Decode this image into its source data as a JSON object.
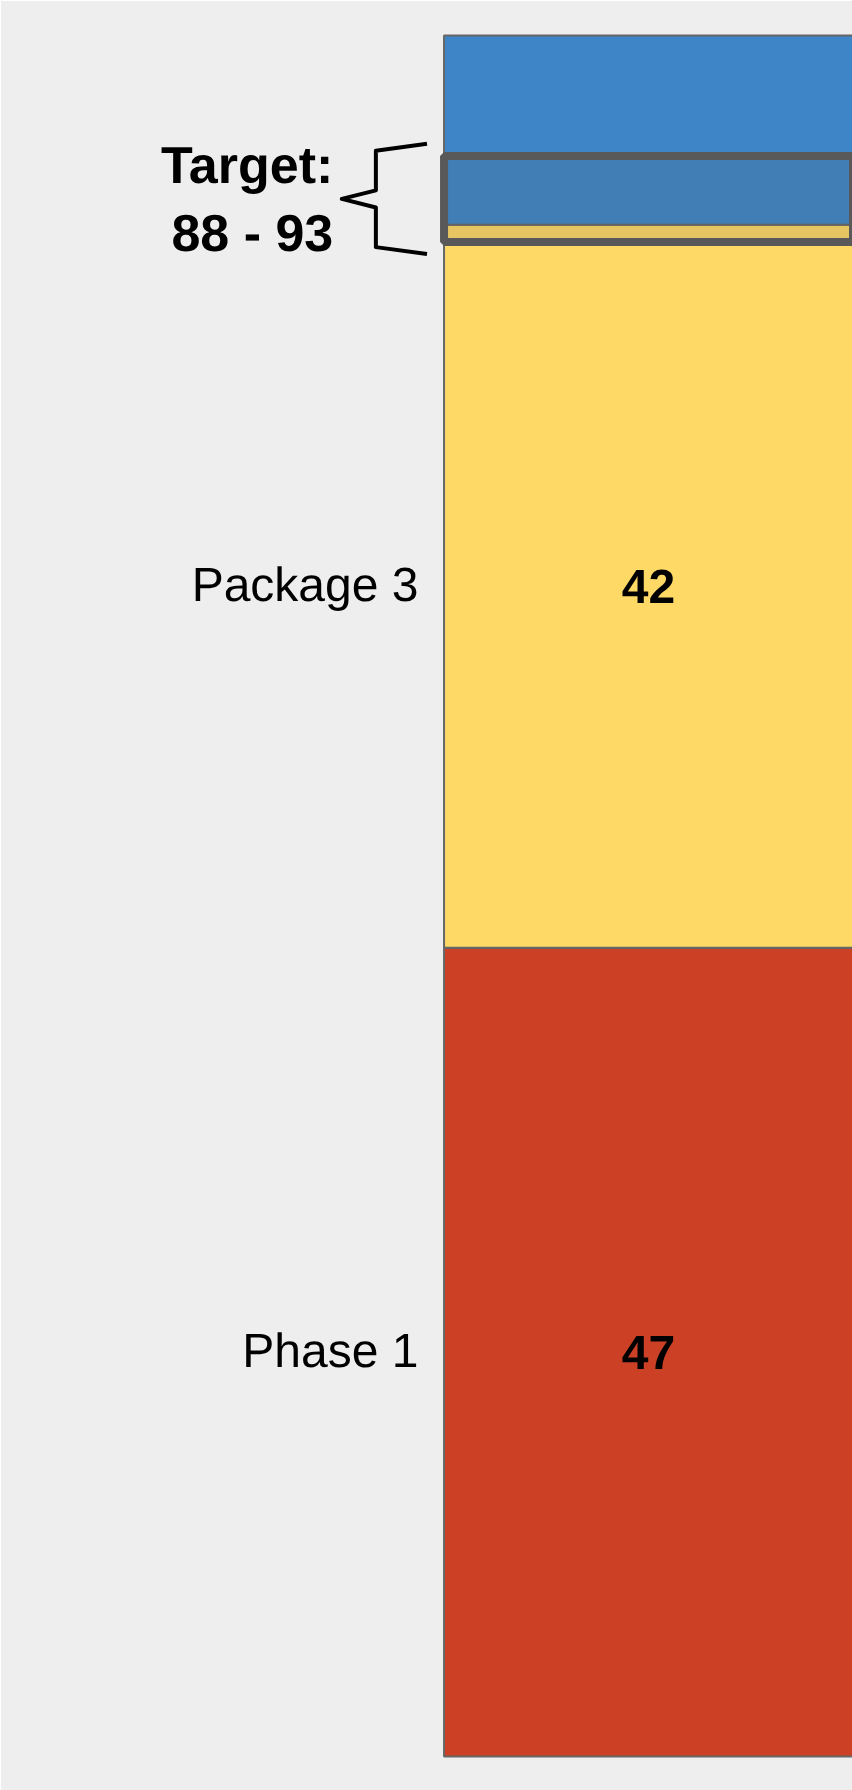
{
  "chart_data": {
    "type": "bar",
    "stacked": true,
    "categories": [
      null
    ],
    "series": [
      {
        "name": "Phase 1",
        "color": "#cc4125",
        "values": [
          47
        ],
        "value_labels": [
          "47"
        ]
      },
      {
        "name": "Package 3",
        "color": "#ffd966",
        "values": [
          42
        ],
        "value_labels": [
          "42"
        ]
      },
      {
        "color": "#3d85c6",
        "values": [
          11
        ],
        "value_labels": [
          null
        ]
      }
    ],
    "bands": [
      {
        "axis": "y",
        "from": 88,
        "to": 93,
        "label": "Target:\n88 - 93",
        "color": "#595959"
      }
    ]
  }
}
